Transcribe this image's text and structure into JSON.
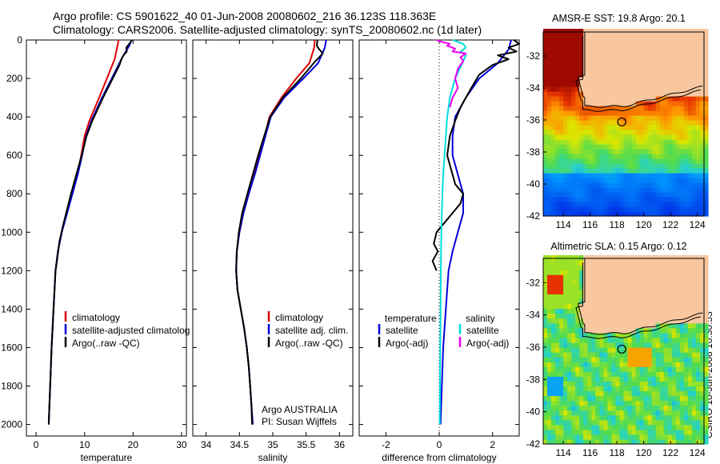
{
  "header": {
    "line1": "Argo profile: CS 5901622_40 01-Jun-2008 20080602_216 36.123S 118.363E",
    "line2": "Climatology: CARS2006. Satellite-adjusted climatology: synTS_20080602.nc (1d later)"
  },
  "credit": "CSIRO 10-Jun-2008 10:30:53",
  "colors": {
    "climatology": "#dd0000",
    "satellite": "#0000dd",
    "argo": "#000000",
    "sal_satellite": "#00dddd",
    "sal_argo": "#ee00ee",
    "land": "#f8c7a0"
  },
  "chart_data": [
    {
      "type": "line",
      "xlabel": "temperature",
      "xlim": [
        -2,
        31
      ],
      "xticks": [
        0,
        10,
        20,
        30
      ],
      "ylim": [
        2060,
        0
      ],
      "yticks": [
        0,
        200,
        400,
        600,
        800,
        1000,
        1200,
        1400,
        1600,
        1800,
        2000
      ],
      "legend": {
        "placement": "lower-middle",
        "entries": [
          "climatology",
          "satellite-adjusted climatolog",
          "Argo(..raw -QC)"
        ]
      },
      "series": [
        {
          "name": "climatology",
          "color": "climatology",
          "points": [
            [
              17.0,
              0
            ],
            [
              16.8,
              30
            ],
            [
              16.2,
              100
            ],
            [
              14.6,
              200
            ],
            [
              13.0,
              300
            ],
            [
              11.0,
              420
            ],
            [
              10.0,
              500
            ],
            [
              9.3,
              600
            ],
            [
              8.5,
              700
            ],
            [
              7.4,
              800
            ],
            [
              6.3,
              900
            ],
            [
              5.3,
              1000
            ],
            [
              4.5,
              1100
            ],
            [
              4.0,
              1200
            ],
            [
              3.6,
              1400
            ],
            [
              3.2,
              1600
            ],
            [
              2.9,
              1800
            ],
            [
              2.6,
              2000
            ]
          ]
        },
        {
          "name": "satellite-adjusted climatolog",
          "color": "satellite",
          "points": [
            [
              19.7,
              0
            ],
            [
              19.2,
              30
            ],
            [
              17.8,
              90
            ],
            [
              15.6,
              200
            ],
            [
              13.6,
              300
            ],
            [
              11.4,
              420
            ],
            [
              10.3,
              500
            ],
            [
              9.5,
              600
            ],
            [
              8.6,
              700
            ],
            [
              7.5,
              800
            ],
            [
              6.4,
              900
            ],
            [
              5.3,
              1000
            ],
            [
              4.5,
              1100
            ],
            [
              4.0,
              1200
            ],
            [
              3.6,
              1400
            ],
            [
              3.2,
              1600
            ],
            [
              2.9,
              1800
            ],
            [
              2.6,
              2000
            ]
          ]
        },
        {
          "name": "Argo(..raw -QC)",
          "color": "argo",
          "points": [
            [
              19.8,
              0
            ],
            [
              19.2,
              20
            ],
            [
              18.6,
              40
            ],
            [
              18.7,
              60
            ],
            [
              18.0,
              80
            ],
            [
              17.6,
              100
            ],
            [
              17.2,
              130
            ],
            [
              15.8,
              200
            ],
            [
              13.8,
              300
            ],
            [
              11.6,
              420
            ],
            [
              10.4,
              500
            ],
            [
              9.4,
              600
            ],
            [
              8.3,
              700
            ],
            [
              7.2,
              800
            ],
            [
              6.2,
              900
            ],
            [
              5.5,
              970
            ],
            [
              4.8,
              1050
            ],
            [
              4.3,
              1150
            ],
            [
              4.0,
              1200
            ],
            [
              3.6,
              1400
            ],
            [
              3.2,
              1600
            ],
            [
              2.9,
              1800
            ],
            [
              2.6,
              2000
            ]
          ]
        }
      ]
    },
    {
      "type": "line",
      "xlabel": "salinity",
      "xlim": [
        33.8,
        36.2
      ],
      "xticks": [
        34,
        34.5,
        35,
        35.5,
        36
      ],
      "ylim": [
        2060,
        0
      ],
      "legend": {
        "placement": "lower-middle",
        "entries": [
          "climatology",
          "satellite adj. clim.",
          "Argo(..raw -QC)"
        ]
      },
      "annotations": [
        "Argo AUSTRALIA",
        "PI: Susan Wijffels"
      ],
      "series": [
        {
          "name": "climatology",
          "color": "climatology",
          "points": [
            [
              35.63,
              0
            ],
            [
              35.62,
              40
            ],
            [
              35.55,
              120
            ],
            [
              35.35,
              200
            ],
            [
              35.13,
              300
            ],
            [
              34.95,
              400
            ],
            [
              34.88,
              500
            ],
            [
              34.8,
              600
            ],
            [
              34.72,
              700
            ],
            [
              34.64,
              800
            ],
            [
              34.56,
              900
            ],
            [
              34.5,
              1000
            ],
            [
              34.46,
              1100
            ],
            [
              34.45,
              1200
            ],
            [
              34.47,
              1300
            ],
            [
              34.52,
              1400
            ],
            [
              34.57,
              1500
            ],
            [
              34.61,
              1600
            ],
            [
              34.64,
              1700
            ],
            [
              34.66,
              1800
            ],
            [
              34.68,
              1900
            ],
            [
              34.69,
              2000
            ]
          ]
        },
        {
          "name": "satellite adj. clim.",
          "color": "satellite",
          "points": [
            [
              35.8,
              0
            ],
            [
              35.78,
              40
            ],
            [
              35.68,
              120
            ],
            [
              35.46,
              200
            ],
            [
              35.17,
              300
            ],
            [
              34.97,
              400
            ],
            [
              34.89,
              500
            ],
            [
              34.81,
              600
            ],
            [
              34.73,
              700
            ],
            [
              34.64,
              800
            ],
            [
              34.56,
              900
            ],
            [
              34.5,
              1000
            ],
            [
              34.46,
              1100
            ],
            [
              34.45,
              1200
            ],
            [
              34.47,
              1300
            ],
            [
              34.52,
              1400
            ],
            [
              34.57,
              1500
            ],
            [
              34.61,
              1600
            ],
            [
              34.64,
              1700
            ],
            [
              34.66,
              1800
            ],
            [
              34.68,
              1900
            ],
            [
              34.7,
              2000
            ]
          ]
        },
        {
          "name": "Argo(..raw -QC)",
          "color": "argo",
          "points": [
            [
              35.67,
              0
            ],
            [
              35.66,
              30
            ],
            [
              35.7,
              50
            ],
            [
              35.75,
              70
            ],
            [
              35.64,
              110
            ],
            [
              35.42,
              200
            ],
            [
              35.15,
              300
            ],
            [
              34.96,
              400
            ],
            [
              34.87,
              500
            ],
            [
              34.78,
              600
            ],
            [
              34.7,
              700
            ],
            [
              34.62,
              800
            ],
            [
              34.54,
              900
            ],
            [
              34.49,
              1000
            ],
            [
              34.46,
              1100
            ],
            [
              34.45,
              1200
            ],
            [
              34.47,
              1300
            ],
            [
              34.52,
              1400
            ],
            [
              34.57,
              1500
            ],
            [
              34.61,
              1600
            ],
            [
              34.64,
              1700
            ],
            [
              34.66,
              1800
            ],
            [
              34.68,
              1900
            ],
            [
              34.69,
              2000
            ]
          ]
        }
      ]
    },
    {
      "type": "line",
      "xlabel": "difference from climatology",
      "xlim": [
        -3,
        3
      ],
      "xticks": [
        -2,
        0,
        2
      ],
      "ylim": [
        2060,
        0
      ],
      "legend": {
        "placement": "lower-middle",
        "headings": [
          "temperature",
          "salinity"
        ],
        "entries": [
          "satellite",
          "Argo(-adj)",
          "satellite",
          "Argo(-adj)"
        ]
      },
      "series": [
        {
          "name": "temperature satellite",
          "color": "satellite",
          "points": [
            [
              2.7,
              0
            ],
            [
              2.6,
              50
            ],
            [
              2.2,
              120
            ],
            [
              1.5,
              200
            ],
            [
              1.0,
              300
            ],
            [
              0.6,
              400
            ],
            [
              0.5,
              500
            ],
            [
              0.5,
              600
            ],
            [
              0.7,
              700
            ],
            [
              0.9,
              800
            ],
            [
              0.9,
              900
            ],
            [
              0.7,
              1000
            ],
            [
              0.5,
              1100
            ],
            [
              0.35,
              1200
            ],
            [
              0.25,
              1400
            ],
            [
              0.15,
              1600
            ],
            [
              0.1,
              1800
            ],
            [
              0.05,
              2000
            ]
          ]
        },
        {
          "name": "temperature Argo(-adj)",
          "color": "argo",
          "points": [
            [
              2.8,
              0
            ],
            [
              3.0,
              20
            ],
            [
              2.6,
              40
            ],
            [
              2.9,
              60
            ],
            [
              2.2,
              80
            ],
            [
              2.6,
              100
            ],
            [
              2.0,
              130
            ],
            [
              1.5,
              180
            ],
            [
              1.2,
              250
            ],
            [
              0.8,
              350
            ],
            [
              0.6,
              420
            ],
            [
              0.4,
              500
            ],
            [
              0.3,
              600
            ],
            [
              0.5,
              700
            ],
            [
              0.6,
              750
            ],
            [
              0.9,
              800
            ],
            [
              0.8,
              850
            ],
            [
              0.5,
              900
            ],
            [
              0.2,
              950
            ],
            [
              -0.1,
              1000
            ],
            [
              -0.2,
              1060
            ],
            [
              -0.05,
              1100
            ],
            [
              -0.25,
              1150
            ],
            [
              -0.1,
              1200
            ]
          ]
        },
        {
          "name": "salinity satellite",
          "color": "sal_satellite",
          "points": [
            [
              0.5,
              0
            ],
            [
              0.9,
              20
            ],
            [
              1.0,
              40
            ],
            [
              0.8,
              60
            ],
            [
              1.0,
              80
            ],
            [
              0.9,
              110
            ],
            [
              0.6,
              200
            ],
            [
              0.4,
              300
            ],
            [
              0.3,
              400
            ],
            [
              0.25,
              500
            ],
            [
              0.2,
              600
            ],
            [
              0.15,
              700
            ],
            [
              0.12,
              800
            ],
            [
              0.1,
              900
            ],
            [
              0.08,
              1000
            ],
            [
              0.06,
              1200
            ],
            [
              0.05,
              1400
            ],
            [
              0.04,
              1600
            ],
            [
              0.03,
              1800
            ],
            [
              0.02,
              2000
            ]
          ]
        },
        {
          "name": "salinity Argo(-adj)",
          "color": "sal_argo",
          "points": [
            [
              -0.1,
              0
            ],
            [
              0.1,
              10
            ],
            [
              0.4,
              20
            ],
            [
              0.3,
              30
            ],
            [
              0.6,
              45
            ],
            [
              0.5,
              60
            ],
            [
              1.0,
              70
            ],
            [
              0.8,
              90
            ],
            [
              0.9,
              110
            ],
            [
              0.7,
              150
            ],
            [
              0.6,
              200
            ],
            [
              0.7,
              250
            ],
            [
              0.5,
              300
            ],
            [
              0.4,
              350
            ]
          ]
        }
      ]
    },
    {
      "type": "heatmap",
      "title": "AMSR-E SST: 19.8 Argo: 20.1",
      "xlim": [
        112.5,
        124.5
      ],
      "ylim": [
        -42,
        -30.5
      ],
      "xticks": [
        114,
        116,
        118,
        120,
        122,
        124
      ],
      "yticks": [
        -32,
        -34,
        -36,
        -38,
        -40,
        -42
      ],
      "marker": {
        "lon": 118.363,
        "lat": -36.123
      }
    },
    {
      "type": "heatmap",
      "title": "Altimetric SLA: 0.15 Argo: 0.12",
      "xlim": [
        112.5,
        124.5
      ],
      "ylim": [
        -42,
        -30.5
      ],
      "xticks": [
        114,
        116,
        118,
        120,
        122,
        124
      ],
      "yticks": [
        -32,
        -34,
        -36,
        -38,
        -40,
        -42
      ],
      "marker": {
        "lon": 118.363,
        "lat": -36.123
      }
    }
  ]
}
